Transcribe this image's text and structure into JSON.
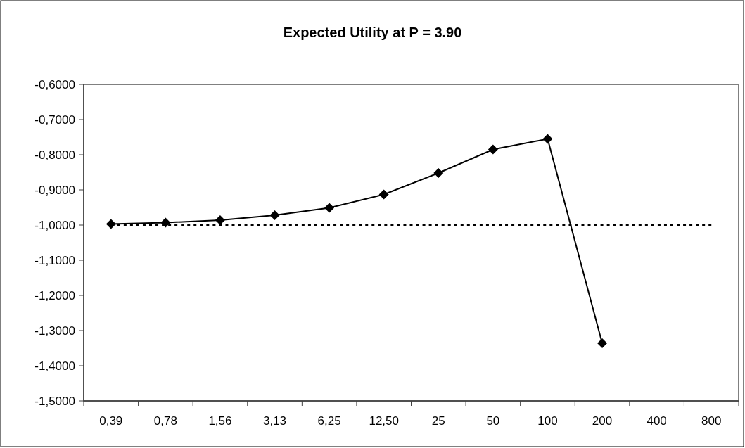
{
  "chart_data": {
    "type": "line",
    "title": "Expected Utility at P = 3.90",
    "categories": [
      "0,39",
      "0,78",
      "1,56",
      "3,13",
      "6,25",
      "12,50",
      "25",
      "50",
      "100",
      "200",
      "400",
      "800"
    ],
    "series": [
      {
        "color": "#000000",
        "marker": "diamond",
        "line_style": "solid",
        "values": [
          -0.997,
          -0.993,
          -0.986,
          -0.972,
          -0.951,
          -0.913,
          -0.852,
          -0.785,
          -0.755,
          -1.336,
          null,
          null
        ]
      },
      {
        "color": "#000000",
        "marker": "none",
        "line_style": "dashed",
        "values": [
          -1,
          -1,
          -1,
          -1,
          -1,
          -1,
          -1,
          -1,
          -1,
          -1,
          -1,
          -1
        ]
      }
    ],
    "ylim": [
      -1.5,
      -0.6
    ],
    "yticks": [
      {
        "value": -0.6,
        "label": "-0,6000"
      },
      {
        "value": -0.7,
        "label": "-0,7000"
      },
      {
        "value": -0.8,
        "label": "-0,8000"
      },
      {
        "value": -0.9,
        "label": "-0,9000"
      },
      {
        "value": -1.0,
        "label": "-1,0000"
      },
      {
        "value": -1.1,
        "label": "-1,1000"
      },
      {
        "value": -1.2,
        "label": "-1,2000"
      },
      {
        "value": -1.3,
        "label": "-1,3000"
      },
      {
        "value": -1.4,
        "label": "-1,4000"
      },
      {
        "value": -1.5,
        "label": "-1,5000"
      }
    ],
    "grid": false
  }
}
